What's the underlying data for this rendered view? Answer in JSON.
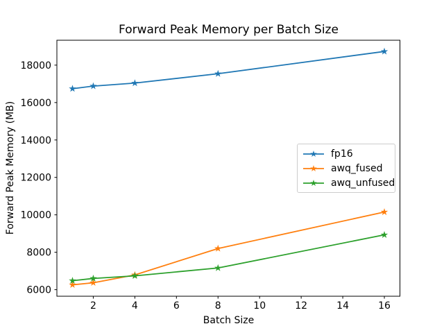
{
  "chart_data": {
    "type": "line",
    "title": "Forward Peak Memory per Batch Size",
    "xlabel": "Batch Size",
    "ylabel": "Forward Peak Memory (MB)",
    "x": [
      1,
      2,
      4,
      8,
      16
    ],
    "series": [
      {
        "name": "fp16",
        "color": "#1f77b4",
        "marker": "star",
        "values": [
          16740,
          16880,
          17040,
          17540,
          18730
        ]
      },
      {
        "name": "awq_fused",
        "color": "#ff7f0e",
        "marker": "star",
        "values": [
          6260,
          6370,
          6790,
          8200,
          10150
        ]
      },
      {
        "name": "awq_unfused",
        "color": "#2ca02c",
        "marker": "star",
        "values": [
          6480,
          6600,
          6740,
          7160,
          8930
        ]
      }
    ],
    "xticks": [
      2,
      4,
      6,
      8,
      10,
      12,
      14,
      16
    ],
    "yticks": [
      6000,
      8000,
      10000,
      12000,
      14000,
      16000,
      18000
    ],
    "xlim": [
      0.25,
      16.75
    ],
    "ylim": [
      5650,
      19330
    ],
    "grid": false,
    "legend_position": "center right",
    "background_color": "#ffffff",
    "spine_color": "#000000"
  }
}
